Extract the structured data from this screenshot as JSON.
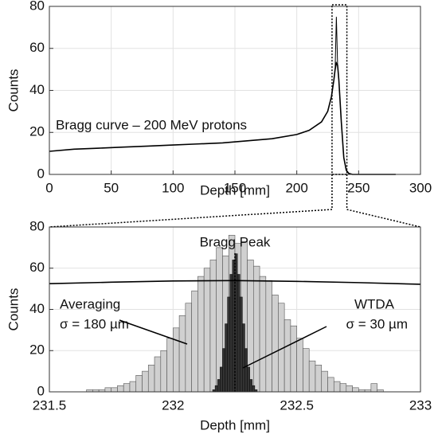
{
  "chart_data": [
    {
      "type": "line",
      "xlabel": "Depth [mm]",
      "ylabel": "Counts",
      "annotation": "Bragg curve – 200 MeV protons",
      "x": [
        0,
        20,
        40,
        60,
        80,
        100,
        120,
        140,
        160,
        180,
        200,
        210,
        220,
        225,
        228,
        230,
        231,
        232,
        233,
        234,
        236,
        238,
        240,
        242,
        245,
        250,
        260,
        280
      ],
      "series": [
        {
          "color": "#000000",
          "values": [
            11,
            12,
            12.5,
            13,
            13.5,
            14,
            14.5,
            15,
            16,
            17,
            19,
            21,
            25,
            30,
            37,
            45,
            50,
            53,
            52,
            45,
            25,
            8,
            2,
            0.5,
            0,
            0,
            0,
            0
          ]
        },
        {
          "color": "#000000",
          "values": [
            null,
            null,
            null,
            null,
            null,
            null,
            null,
            null,
            null,
            null,
            null,
            null,
            null,
            null,
            null,
            null,
            50,
            75,
            52,
            null,
            null,
            null,
            null,
            null,
            null,
            null,
            null,
            null
          ]
        }
      ],
      "xlim": [
        0,
        300
      ],
      "xticks": [
        0,
        50,
        100,
        150,
        200,
        250,
        300
      ],
      "ylim": [
        0,
        80
      ],
      "yticks": [
        0,
        20,
        40,
        60,
        80
      ],
      "grid": true,
      "zoom_xlim": [
        228.5,
        240.5
      ]
    },
    {
      "type": "histogram",
      "xlabel": "Depth [mm]",
      "ylabel": "Counts",
      "series": [
        {
          "color": "#d0d0d0",
          "bins": [
            231.65,
            231.675,
            231.7,
            231.725,
            231.75,
            231.775,
            231.8,
            231.825,
            231.85,
            231.875,
            231.9,
            231.925,
            231.95,
            231.975,
            232,
            232.025,
            232.05,
            232.075,
            232.1,
            232.125,
            232.15,
            232.175,
            232.2,
            232.225,
            232.25,
            232.275,
            232.3,
            232.325,
            232.35,
            232.375,
            232.4,
            232.425,
            232.45,
            232.475,
            232.5,
            232.525,
            232.55,
            232.575,
            232.6,
            232.625,
            232.65,
            232.675,
            232.7,
            232.725,
            232.75,
            232.775,
            232.8,
            232.825,
            232.85
          ],
          "values": [
            1,
            1,
            1,
            2,
            2,
            3,
            4,
            5,
            8,
            10,
            13,
            17,
            20,
            26,
            31,
            37,
            43,
            49,
            56,
            60,
            64,
            70,
            66,
            76,
            72,
            73,
            64,
            61,
            56,
            54,
            47,
            43,
            35,
            32,
            26,
            21,
            15,
            13,
            10,
            7,
            5,
            4,
            3,
            2,
            1,
            1,
            4,
            1
          ]
        },
        {
          "color": "#333333",
          "bins": [
            232.15,
            232.16,
            232.17,
            232.18,
            232.19,
            232.2,
            232.21,
            232.22,
            232.23,
            232.24,
            232.25,
            232.26,
            232.27,
            232.28,
            232.29,
            232.3,
            232.31,
            232.32,
            232.33,
            232.34,
            232.35
          ],
          "values": [
            0,
            1,
            3,
            6,
            12,
            21,
            33,
            46,
            57,
            64,
            67,
            57,
            46,
            33,
            21,
            12,
            6,
            3,
            1,
            0
          ]
        }
      ],
      "line": {
        "color": "#000000",
        "x": [
          231.5,
          231.75,
          232,
          232.25,
          232.5,
          232.75,
          233
        ],
        "values": [
          52.5,
          53.2,
          53.8,
          54,
          53.6,
          53,
          52.2
        ]
      },
      "peak_x": 232.25,
      "peak_label": "Bragg Peak",
      "annotations": [
        [
          "Averaging",
          "σ =  180 µm"
        ],
        [
          "WTDA",
          "σ =  30 µm"
        ]
      ],
      "xlim": [
        231.5,
        233
      ],
      "xticks": [
        231.5,
        232,
        232.5,
        233
      ],
      "ylim": [
        0,
        80
      ],
      "yticks": [
        0,
        20,
        40,
        60,
        80
      ],
      "grid": true
    }
  ]
}
